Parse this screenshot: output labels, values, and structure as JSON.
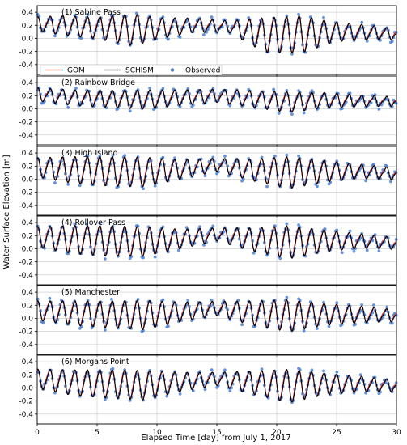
{
  "chart_data": {
    "type": "line",
    "xlabel": "Elapsed Time [day] from July 1, 2017",
    "ylabel": "Water Surface Elevation [m]",
    "xlim": [
      0,
      30
    ],
    "xticks": [
      "0",
      "5",
      "10",
      "15",
      "20",
      "25",
      "30"
    ],
    "ylim": [
      -0.55,
      0.5
    ],
    "yticks": [
      "-0.4",
      "-0.2",
      "0.0",
      "0.2",
      "0.4"
    ],
    "grid": true,
    "legend": {
      "placement": "bottom of panel 1",
      "entries": [
        {
          "name": "GOM",
          "color": "#d62728",
          "kind": "line"
        },
        {
          "name": "SCHISM",
          "color": "#000000",
          "kind": "line"
        },
        {
          "name": "Observed",
          "color": "#4a7fd4",
          "kind": "marker"
        }
      ]
    },
    "tidal_period_days": 1.04,
    "panels": [
      {
        "title": "(1) Sabine Pass",
        "envelope": {
          "days": [
            0,
            2,
            5,
            8,
            10,
            13,
            16,
            19,
            22,
            25,
            28,
            30
          ],
          "mean": [
            0.22,
            0.2,
            0.16,
            0.13,
            0.15,
            0.2,
            0.18,
            0.05,
            0.06,
            0.1,
            0.09,
            0.06
          ],
          "amplitude": [
            0.1,
            0.14,
            0.16,
            0.24,
            0.16,
            0.1,
            0.08,
            0.26,
            0.28,
            0.14,
            0.1,
            0.07
          ]
        }
      },
      {
        "title": "(2) Rainbow Bridge",
        "envelope": {
          "days": [
            0,
            3,
            6,
            9,
            12,
            15,
            18,
            21,
            24,
            27,
            30
          ],
          "mean": [
            0.22,
            0.17,
            0.15,
            0.14,
            0.17,
            0.2,
            0.15,
            0.1,
            0.13,
            0.12,
            0.11
          ],
          "amplitude": [
            0.09,
            0.11,
            0.12,
            0.14,
            0.11,
            0.09,
            0.12,
            0.15,
            0.11,
            0.08,
            0.06
          ]
        }
      },
      {
        "title": "(3) High Island",
        "envelope": {
          "days": [
            0,
            3,
            6,
            9,
            12,
            15,
            18,
            21,
            24,
            27,
            30
          ],
          "mean": [
            0.18,
            0.14,
            0.12,
            0.11,
            0.15,
            0.22,
            0.14,
            0.1,
            0.12,
            0.12,
            0.08
          ],
          "amplitude": [
            0.14,
            0.2,
            0.22,
            0.22,
            0.14,
            0.09,
            0.16,
            0.24,
            0.16,
            0.1,
            0.08
          ]
        }
      },
      {
        "title": "(4) Rollover Pass",
        "envelope": {
          "days": [
            0,
            3,
            6,
            9,
            12,
            15,
            18,
            21,
            24,
            27,
            30
          ],
          "mean": [
            0.18,
            0.14,
            0.12,
            0.11,
            0.15,
            0.22,
            0.14,
            0.1,
            0.12,
            0.12,
            0.08
          ],
          "amplitude": [
            0.15,
            0.21,
            0.23,
            0.22,
            0.14,
            0.09,
            0.17,
            0.25,
            0.16,
            0.1,
            0.08
          ]
        }
      },
      {
        "title": "(5) Manchester",
        "envelope": {
          "days": [
            0,
            3,
            6,
            9,
            12,
            15,
            18,
            21,
            24,
            27,
            30
          ],
          "mean": [
            0.12,
            0.08,
            0.06,
            0.05,
            0.1,
            0.15,
            0.08,
            0.04,
            0.06,
            0.06,
            0.04
          ],
          "amplitude": [
            0.14,
            0.18,
            0.2,
            0.22,
            0.14,
            0.1,
            0.18,
            0.24,
            0.16,
            0.12,
            0.08
          ]
        }
      },
      {
        "title": "(6) Morgans Point",
        "envelope": {
          "days": [
            0,
            3,
            6,
            9,
            12,
            15,
            18,
            21,
            24,
            27,
            30
          ],
          "mean": [
            0.14,
            0.08,
            0.06,
            0.04,
            0.09,
            0.14,
            0.08,
            0.03,
            0.06,
            0.06,
            0.03
          ],
          "amplitude": [
            0.14,
            0.19,
            0.21,
            0.22,
            0.14,
            0.09,
            0.17,
            0.25,
            0.16,
            0.11,
            0.08
          ]
        }
      }
    ]
  }
}
